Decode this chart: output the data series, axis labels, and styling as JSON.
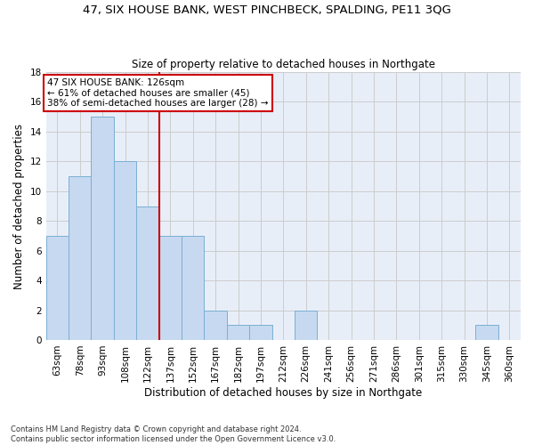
{
  "title1": "47, SIX HOUSE BANK, WEST PINCHBECK, SPALDING, PE11 3QG",
  "title2": "Size of property relative to detached houses in Northgate",
  "xlabel": "Distribution of detached houses by size in Northgate",
  "ylabel": "Number of detached properties",
  "bins": [
    "63sqm",
    "78sqm",
    "93sqm",
    "108sqm",
    "122sqm",
    "137sqm",
    "152sqm",
    "167sqm",
    "182sqm",
    "197sqm",
    "212sqm",
    "226sqm",
    "241sqm",
    "256sqm",
    "271sqm",
    "286sqm",
    "301sqm",
    "315sqm",
    "330sqm",
    "345sqm",
    "360sqm"
  ],
  "values": [
    7,
    11,
    15,
    12,
    9,
    7,
    7,
    2,
    1,
    1,
    0,
    2,
    0,
    0,
    0,
    0,
    0,
    0,
    0,
    1,
    0
  ],
  "bar_color": "#c6d9f0",
  "bar_edge_color": "#7bafd4",
  "vline_x": 4.5,
  "vline_color": "#cc0000",
  "annotation_text": "47 SIX HOUSE BANK: 126sqm\n← 61% of detached houses are smaller (45)\n38% of semi-detached houses are larger (28) →",
  "annotation_box_color": "white",
  "annotation_box_edge": "#cc0000",
  "ylim": [
    0,
    18
  ],
  "yticks": [
    0,
    2,
    4,
    6,
    8,
    10,
    12,
    14,
    16,
    18
  ],
  "footer": "Contains HM Land Registry data © Crown copyright and database right 2024.\nContains public sector information licensed under the Open Government Licence v3.0.",
  "grid_color": "#cccccc",
  "background_color": "#e8eef8"
}
